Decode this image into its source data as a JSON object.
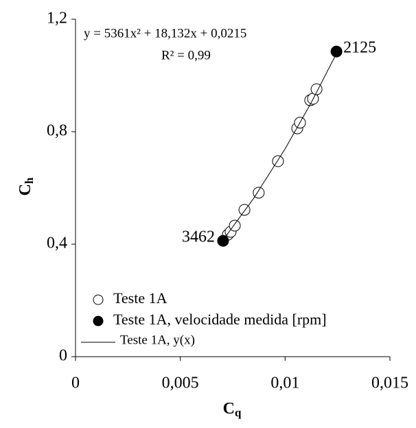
{
  "chart_data": {
    "type": "scatter",
    "equation": "y = 5361x² + 18,132x + 0,0215",
    "r_squared": "R² = 0,99",
    "xlabel": "C",
    "xlabel_sub": "q",
    "ylabel": "C",
    "ylabel_sub": "h",
    "xlim": [
      0,
      0.015
    ],
    "xticks": [
      0,
      {
        "value": 0.005,
        "label": "0,005"
      },
      {
        "value": 0.01,
        "label": "0,01"
      },
      {
        "value": 0.015,
        "label": "0,015"
      }
    ],
    "ylim": [
      0,
      1.2
    ],
    "yticks": [
      0,
      {
        "value": 0.4,
        "label": "0,4"
      },
      {
        "value": 0.8,
        "label": "0,8"
      },
      {
        "value": 1.2,
        "label": "1,2"
      }
    ],
    "legend": "lower left",
    "series": [
      {
        "name": "Teste 1A",
        "color": "#000000",
        "marker": "open",
        "x": [
          0.00727,
          0.0074,
          0.0076,
          0.00806,
          0.00874,
          0.00966,
          0.01058,
          0.01071,
          0.0112,
          0.01133,
          0.0115
        ],
        "values": [
          0.434,
          0.444,
          0.466,
          0.522,
          0.583,
          0.695,
          0.812,
          0.832,
          0.912,
          0.917,
          0.951
        ]
      },
      {
        "name": "Teste 1A, velocidade medida [rpm]",
        "color": "#000000",
        "marker": "filled",
        "x": [
          0.00704,
          0.01245
        ],
        "values": [
          0.412,
          1.085
        ],
        "labels": [
          "3462",
          "2125"
        ]
      },
      {
        "name": "Teste 1A, y(x)",
        "color": "#000000",
        "marker": "line",
        "x": [
          0.00704,
          0.0085,
          0.01,
          0.01125,
          0.01245
        ],
        "values": [
          0.415,
          0.563,
          0.739,
          0.904,
          1.078
        ]
      }
    ]
  }
}
